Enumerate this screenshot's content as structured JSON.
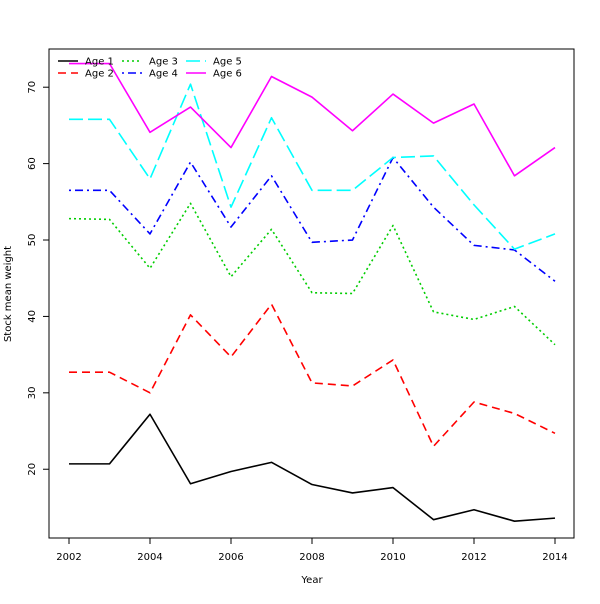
{
  "chart_data": {
    "type": "line",
    "title": "",
    "xlabel": "Year",
    "ylabel": "Stock mean weight",
    "xlim": [
      2002,
      2014
    ],
    "ylim": [
      11,
      75
    ],
    "x_ticks": [
      2002,
      2004,
      2006,
      2008,
      2010,
      2012,
      2014
    ],
    "y_ticks": [
      20,
      30,
      40,
      50,
      60,
      70
    ],
    "grid": false,
    "legend_position": "top-left",
    "x": [
      2002,
      2003,
      2004,
      2005,
      2006,
      2007,
      2008,
      2009,
      2010,
      2011,
      2012,
      2013,
      2014
    ],
    "series": [
      {
        "name": "Age 1",
        "color": "#000000",
        "dash": "solid",
        "values": [
          20.7,
          20.7,
          27.2,
          18.1,
          19.7,
          20.9,
          18.0,
          16.9,
          17.6,
          13.4,
          14.7,
          13.2,
          13.6
        ]
      },
      {
        "name": "Age 2",
        "color": "#ff0000",
        "dash": "dashed",
        "values": [
          32.7,
          32.7,
          30.0,
          40.2,
          34.7,
          41.6,
          31.3,
          30.9,
          34.3,
          23.0,
          28.8,
          27.3,
          24.7
        ]
      },
      {
        "name": "Age 3",
        "color": "#00cd00",
        "dash": "dotted",
        "values": [
          52.8,
          52.7,
          46.3,
          54.8,
          45.2,
          51.4,
          43.1,
          43.0,
          51.9,
          40.6,
          39.6,
          41.3,
          36.3
        ]
      },
      {
        "name": "Age 4",
        "color": "#0000ff",
        "dash": "dotdash",
        "values": [
          56.5,
          56.5,
          50.8,
          60.2,
          51.7,
          58.4,
          49.7,
          50.0,
          60.8,
          54.3,
          49.3,
          48.7,
          44.6
        ]
      },
      {
        "name": "Age 5",
        "color": "#00ffff",
        "dash": "longdash",
        "values": [
          65.8,
          65.8,
          58.0,
          70.4,
          54.3,
          66.0,
          56.5,
          56.5,
          60.8,
          61.0,
          54.6,
          48.8,
          50.8
        ]
      },
      {
        "name": "Age 6",
        "color": "#ff00ff",
        "dash": "solid",
        "values": [
          73.1,
          73.1,
          64.1,
          67.4,
          62.1,
          71.4,
          68.7,
          64.3,
          69.1,
          65.3,
          67.8,
          58.4,
          62.1
        ]
      }
    ]
  }
}
